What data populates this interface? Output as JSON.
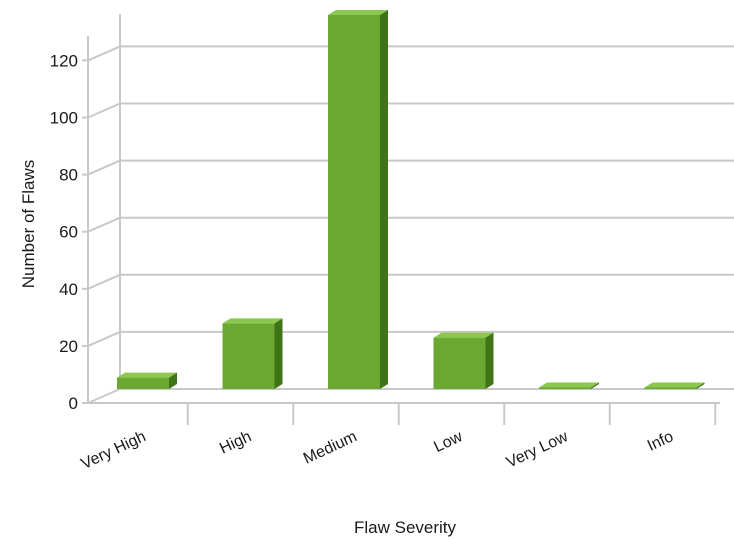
{
  "chart_data": {
    "type": "bar",
    "style": "3d",
    "categories": [
      "Very High",
      "High",
      "Medium",
      "Low",
      "Very Low",
      "Info"
    ],
    "values": [
      4,
      23,
      131,
      18,
      0,
      0
    ],
    "xlabel": "Flaw Severity",
    "ylabel": "Number of Flaws",
    "ylim": [
      0,
      130
    ],
    "yticks": [
      0,
      20,
      40,
      60,
      80,
      100,
      120
    ],
    "grid": true,
    "legend": "none",
    "colors": {
      "bar_front": "#6aa832",
      "bar_top": "#8cc850",
      "bar_side": "#3f7418",
      "grid": "#c8c8c8"
    }
  }
}
